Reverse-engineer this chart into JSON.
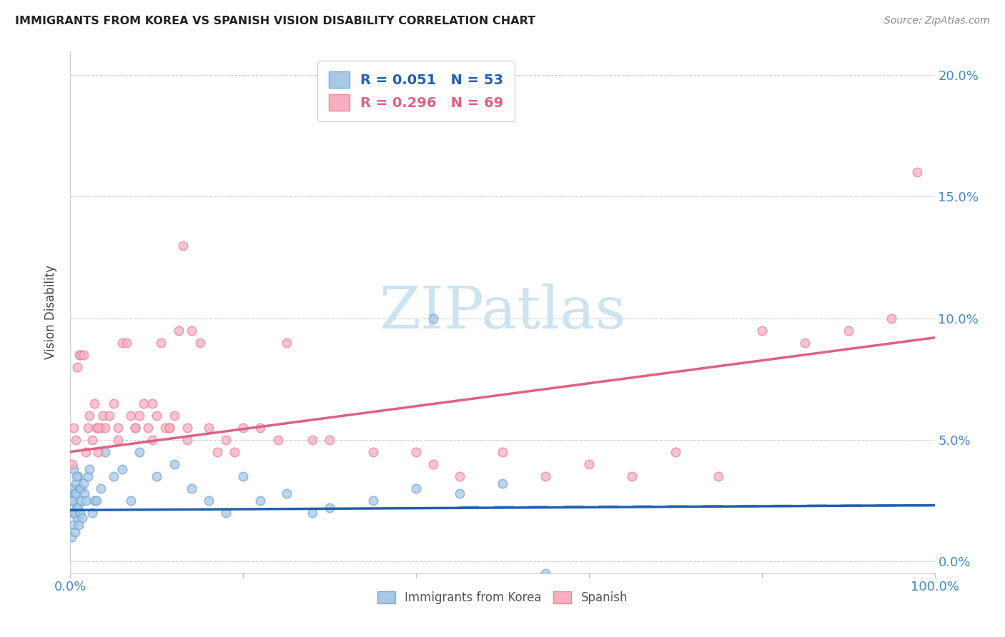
{
  "title": "IMMIGRANTS FROM KOREA VS SPANISH VISION DISABILITY CORRELATION CHART",
  "source": "Source: ZipAtlas.com",
  "ylabel": "Vision Disability",
  "xlim": [
    0,
    100
  ],
  "ylim": [
    -0.5,
    21
  ],
  "yticks": [
    0,
    5,
    10,
    15,
    20
  ],
  "ytick_labels": [
    "0.0%",
    "5.0%",
    "10.0%",
    "15.0%",
    "20.0%"
  ],
  "korea_R": 0.051,
  "korea_N": 53,
  "spanish_R": 0.296,
  "spanish_N": 69,
  "korea_color": "#a8c8e8",
  "korea_edge_color": "#7aaad0",
  "korea_line_color": "#2060b0",
  "spanish_color": "#f8b0c0",
  "spanish_edge_color": "#e888a0",
  "spanish_line_color": "#e06080",
  "watermark_color": "#cce4f0",
  "korea_trend_x0": 0,
  "korea_trend_y0": 2.1,
  "korea_trend_x1": 100,
  "korea_trend_y1": 2.3,
  "spanish_trend_x0": 0,
  "spanish_trend_y0": 4.5,
  "spanish_trend_x1": 100,
  "spanish_trend_y1": 9.2,
  "korea_scatter_x": [
    0.1,
    0.2,
    0.3,
    0.4,
    0.5,
    0.6,
    0.7,
    0.8,
    0.9,
    1.0,
    0.15,
    0.25,
    0.35,
    0.45,
    0.55,
    0.65,
    0.75,
    0.85,
    0.95,
    1.1,
    1.2,
    1.3,
    1.4,
    1.5,
    1.6,
    1.8,
    2.0,
    2.2,
    2.5,
    2.8,
    3.0,
    3.5,
    4.0,
    5.0,
    6.0,
    7.0,
    8.0,
    10.0,
    12.0,
    14.0,
    16.0,
    18.0,
    20.0,
    22.0,
    25.0,
    28.0,
    30.0,
    35.0,
    40.0,
    45.0,
    50.0,
    55.0,
    42.0
  ],
  "korea_scatter_y": [
    2.5,
    3.0,
    2.0,
    1.5,
    2.8,
    3.2,
    2.2,
    1.8,
    3.5,
    3.0,
    1.0,
    2.5,
    3.8,
    2.0,
    1.2,
    2.8,
    3.5,
    2.2,
    1.5,
    2.0,
    3.0,
    2.5,
    1.8,
    3.2,
    2.8,
    2.5,
    3.5,
    3.8,
    2.0,
    2.5,
    2.5,
    3.0,
    4.5,
    3.5,
    3.8,
    2.5,
    4.5,
    3.5,
    4.0,
    3.0,
    2.5,
    2.0,
    3.5,
    2.5,
    2.8,
    2.0,
    2.2,
    2.5,
    3.0,
    2.8,
    3.2,
    -0.5,
    10.0
  ],
  "spanish_scatter_x": [
    0.2,
    0.4,
    0.6,
    0.8,
    1.0,
    1.2,
    1.5,
    1.8,
    2.0,
    2.2,
    2.5,
    2.8,
    3.0,
    3.2,
    3.5,
    3.8,
    4.0,
    4.5,
    5.0,
    5.5,
    6.0,
    6.5,
    7.0,
    7.5,
    8.0,
    8.5,
    9.0,
    9.5,
    10.0,
    10.5,
    11.0,
    11.5,
    12.0,
    12.5,
    13.0,
    13.5,
    14.0,
    15.0,
    16.0,
    17.0,
    18.0,
    19.0,
    20.0,
    22.0,
    24.0,
    25.0,
    28.0,
    30.0,
    35.0,
    40.0,
    42.0,
    45.0,
    50.0,
    55.0,
    60.0,
    65.0,
    70.0,
    75.0,
    80.0,
    85.0,
    90.0,
    95.0,
    98.0,
    3.2,
    5.5,
    7.5,
    9.5,
    11.5,
    13.5
  ],
  "spanish_scatter_y": [
    4.0,
    5.5,
    5.0,
    8.0,
    8.5,
    8.5,
    8.5,
    4.5,
    5.5,
    6.0,
    5.0,
    6.5,
    5.5,
    4.5,
    5.5,
    6.0,
    5.5,
    6.0,
    6.5,
    5.5,
    9.0,
    9.0,
    6.0,
    5.5,
    6.0,
    6.5,
    5.5,
    6.5,
    6.0,
    9.0,
    5.5,
    5.5,
    6.0,
    9.5,
    13.0,
    5.5,
    9.5,
    9.0,
    5.5,
    4.5,
    5.0,
    4.5,
    5.5,
    5.5,
    5.0,
    9.0,
    5.0,
    5.0,
    4.5,
    4.5,
    4.0,
    3.5,
    4.5,
    3.5,
    4.0,
    3.5,
    4.5,
    3.5,
    9.5,
    9.0,
    9.5,
    10.0,
    16.0,
    5.5,
    5.0,
    5.5,
    5.0,
    5.5,
    5.0
  ]
}
